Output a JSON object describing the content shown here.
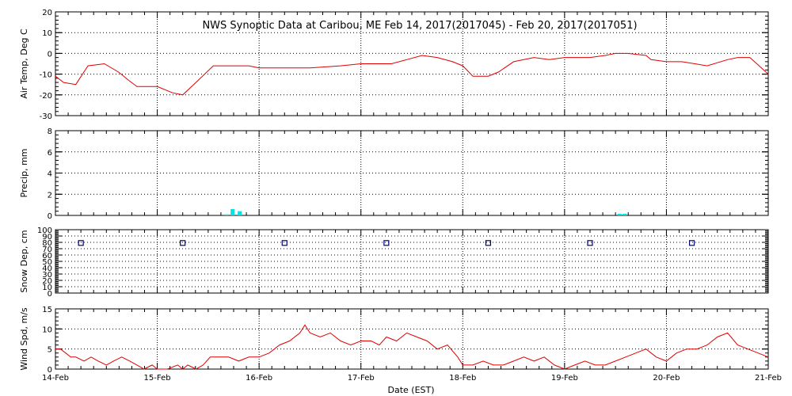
{
  "title": "NWS Synoptic Data at Caribou, ME   Feb 14, 2017(2017045) - Feb 20, 2017(2017051)",
  "xlabel": "Date (EST)",
  "x_tick_labels": [
    "14-Feb",
    "15-Feb",
    "16-Feb",
    "17-Feb",
    "18-Feb",
    "19-Feb",
    "20-Feb",
    "21-Feb"
  ],
  "colors": {
    "temp": "#e00000",
    "precip": "#00e5e5",
    "snow": "#000080",
    "wind": "#e00000",
    "grid": "#000000"
  },
  "chart_data": [
    {
      "type": "line",
      "ylabel": "Air Temp, Deg C",
      "ylim": [
        -30,
        20
      ],
      "yticks": [
        -30,
        -20,
        -10,
        0,
        10,
        20
      ],
      "x_unit": "days since 14-Feb 00:00 EST",
      "xlim": [
        0,
        7
      ],
      "grid": true,
      "series": [
        {
          "x": [
            0.0,
            0.08,
            0.2,
            0.32,
            0.48,
            0.62,
            0.72,
            0.8,
            0.93,
            1.0,
            1.15,
            1.25,
            1.38,
            1.55,
            1.63,
            1.75,
            1.9,
            2.0,
            2.25,
            2.5,
            2.8,
            3.0,
            3.2,
            3.3,
            3.45,
            3.6,
            3.75,
            3.9,
            4.0,
            4.1,
            4.25,
            4.35,
            4.5,
            4.7,
            4.85,
            5.0,
            5.1,
            5.25,
            5.4,
            5.5,
            5.62,
            5.8,
            5.85,
            6.0,
            6.15,
            6.28,
            6.4,
            6.6,
            6.7,
            6.82,
            7.0
          ],
          "y": [
            -11,
            -14,
            -15,
            -6,
            -5,
            -9,
            -13,
            -16,
            -16,
            -16,
            -19,
            -20,
            -14,
            -6,
            -6,
            -6,
            -6,
            -7,
            -7,
            -7,
            -6,
            -5,
            -5,
            -5,
            -3,
            -1,
            -2,
            -4,
            -6,
            -11,
            -11,
            -9,
            -4,
            -2,
            -3,
            -2,
            -2,
            -2,
            -1,
            0,
            0,
            -1,
            -3,
            -4,
            -4,
            -5,
            -6,
            -3,
            -2,
            -2,
            -10
          ]
        }
      ]
    },
    {
      "type": "bar",
      "ylabel": "Precip, mm",
      "ylim": [
        0,
        8
      ],
      "yticks": [
        0,
        2,
        4,
        6,
        8
      ],
      "xlim": [
        0,
        7
      ],
      "grid": true,
      "series": [
        {
          "x": [
            1.68,
            1.74,
            1.81,
            5.54,
            5.59
          ],
          "y": [
            0.1,
            0.6,
            0.4,
            0.15,
            0.15
          ],
          "width": 0.04
        }
      ]
    },
    {
      "type": "scatter",
      "ylabel": "Snow Dep, cm",
      "ylim": [
        0,
        100
      ],
      "yticks": [
        0,
        10,
        20,
        30,
        40,
        50,
        60,
        70,
        80,
        90,
        100
      ],
      "xlim": [
        0,
        7
      ],
      "grid": true,
      "series": [
        {
          "x": [
            0.25,
            1.25,
            2.25,
            3.25,
            4.25,
            5.25,
            6.25
          ],
          "y": [
            79,
            79,
            79,
            79,
            79,
            79,
            79
          ]
        }
      ]
    },
    {
      "type": "line",
      "ylabel": "Wind Spd, m/s",
      "ylim": [
        0,
        15
      ],
      "yticks": [
        0,
        5,
        10,
        15
      ],
      "xlim": [
        0,
        7
      ],
      "grid": true,
      "series": [
        {
          "x": [
            0.0,
            0.05,
            0.1,
            0.15,
            0.2,
            0.28,
            0.35,
            0.42,
            0.5,
            0.57,
            0.65,
            0.73,
            0.8,
            0.87,
            0.95,
            1.0,
            1.1,
            1.2,
            1.25,
            1.3,
            1.38,
            1.45,
            1.52,
            1.6,
            1.7,
            1.8,
            1.9,
            2.0,
            2.1,
            2.2,
            2.3,
            2.4,
            2.45,
            2.5,
            2.6,
            2.7,
            2.8,
            2.9,
            3.0,
            3.1,
            3.18,
            3.25,
            3.35,
            3.45,
            3.55,
            3.65,
            3.75,
            3.85,
            3.95,
            4.0,
            4.1,
            4.2,
            4.3,
            4.4,
            4.5,
            4.6,
            4.7,
            4.8,
            4.9,
            5.0,
            5.1,
            5.2,
            5.3,
            5.4,
            5.5,
            5.6,
            5.7,
            5.8,
            5.9,
            6.0,
            6.1,
            6.2,
            6.3,
            6.4,
            6.5,
            6.6,
            6.7,
            6.8,
            6.9,
            7.0
          ],
          "y": [
            5,
            5,
            4,
            3,
            3,
            2,
            3,
            2,
            1,
            2,
            3,
            2,
            1,
            0,
            1,
            0,
            0,
            1,
            0,
            1,
            0,
            1,
            3,
            3,
            3,
            2,
            3,
            3,
            4,
            6,
            7,
            9,
            11,
            9,
            8,
            9,
            7,
            6,
            7,
            7,
            6,
            8,
            7,
            9,
            8,
            7,
            5,
            6,
            3,
            1,
            1,
            2,
            1,
            1,
            2,
            3,
            2,
            3,
            1,
            0,
            1,
            2,
            1,
            1,
            2,
            3,
            4,
            5,
            3,
            2,
            4,
            5,
            5,
            6,
            8,
            9,
            6,
            5,
            4,
            3
          ]
        }
      ]
    }
  ]
}
